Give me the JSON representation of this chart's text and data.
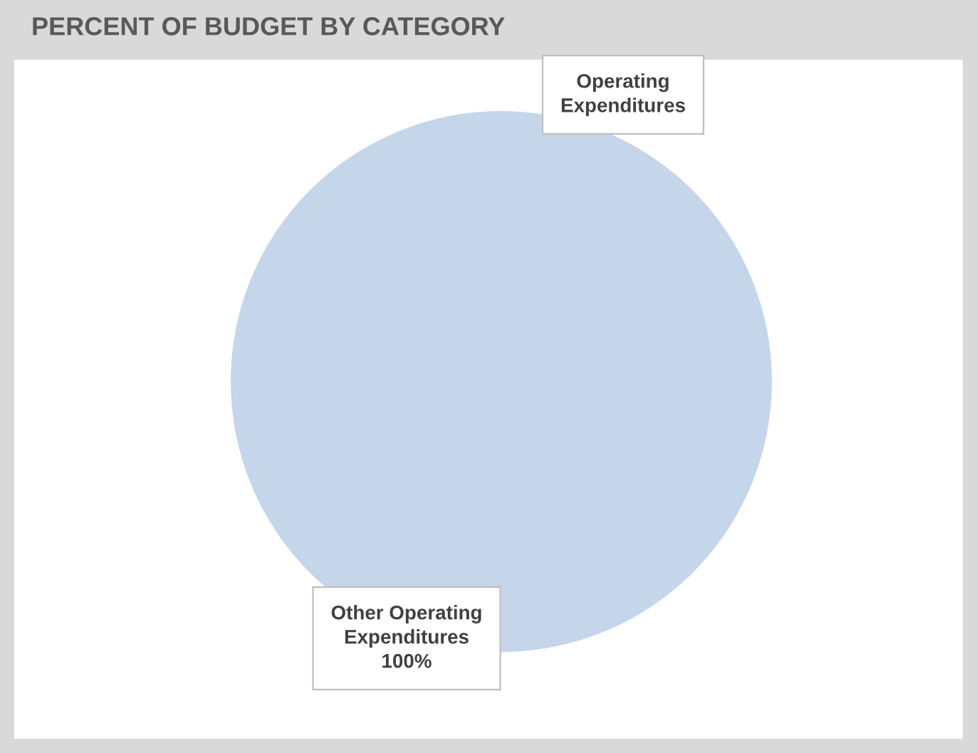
{
  "chart_data": {
    "type": "pie",
    "title": "PERCENT OF BUDGET BY CATEGORY",
    "categories": [
      "Operating Expenditures",
      "Other Operating Expenditures"
    ],
    "values": [
      0,
      100
    ],
    "colors": [
      "#4472c4",
      "#c5d5ea"
    ],
    "value_labels": [
      null,
      "100%"
    ],
    "legend": false
  }
}
